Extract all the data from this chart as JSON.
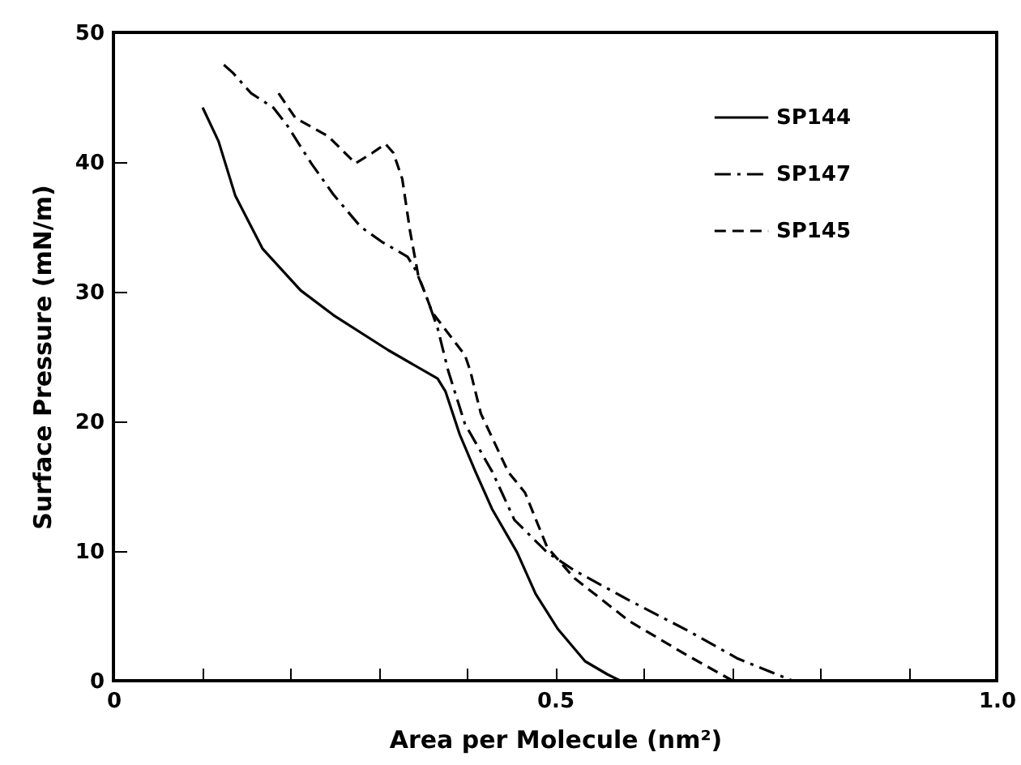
{
  "chart_data": {
    "type": "line",
    "xlabel": "Area per Molecule  (nm²)",
    "ylabel": "Surface Pressure  (mN/m)",
    "xlim": [
      0,
      1.0
    ],
    "ylim": [
      0,
      50
    ],
    "xticks": [
      0,
      {
        "value": 0.1,
        "label": null
      },
      {
        "value": 0.2,
        "label": null
      },
      {
        "value": 0.3,
        "label": null
      },
      {
        "value": 0.4,
        "label": null
      },
      0.5,
      {
        "value": 0.6,
        "label": null
      },
      {
        "value": 0.7,
        "label": null
      },
      {
        "value": 0.8,
        "label": null
      },
      {
        "value": 0.9,
        "label": null
      },
      {
        "value": 1.0,
        "label": "1.0"
      }
    ],
    "yticks": [
      0,
      10,
      20,
      30,
      40,
      50
    ],
    "legend": "top right",
    "grid": false,
    "marker": "none",
    "series": [
      {
        "name": "SP144",
        "color": "#000000",
        "line_style": "solid",
        "x": [
          0.101,
          0.119,
          0.138,
          0.169,
          0.212,
          0.249,
          0.311,
          0.367,
          0.376,
          0.392,
          0.41,
          0.429,
          0.457,
          0.478,
          0.503,
          0.534,
          0.559,
          0.574
        ],
        "values": [
          44.2,
          41.6,
          37.4,
          33.3,
          30.1,
          28.2,
          25.5,
          23.3,
          22.3,
          19.0,
          16.1,
          13.2,
          9.9,
          6.7,
          4.0,
          1.5,
          0.5,
          0
        ]
      },
      {
        "name": "SP147",
        "color": "#000000",
        "line_style": "dashdot",
        "x": [
          0.125,
          0.135,
          0.156,
          0.181,
          0.197,
          0.224,
          0.249,
          0.28,
          0.305,
          0.333,
          0.342,
          0.354,
          0.367,
          0.379,
          0.398,
          0.429,
          0.454,
          0.491,
          0.522,
          0.584,
          0.652,
          0.707,
          0.769
        ],
        "values": [
          47.5,
          46.9,
          45.3,
          44.2,
          42.8,
          39.9,
          37.5,
          35.0,
          33.8,
          32.7,
          31.7,
          29.7,
          27.2,
          23.9,
          19.8,
          16.1,
          12.4,
          9.9,
          8.5,
          6.2,
          3.8,
          1.7,
          0
        ]
      },
      {
        "name": "SP145",
        "color": "#000000",
        "line_style": "dashed",
        "x": [
          0.187,
          0.206,
          0.243,
          0.274,
          0.293,
          0.308,
          0.317,
          0.327,
          0.336,
          0.345,
          0.361,
          0.379,
          0.398,
          0.404,
          0.416,
          0.447,
          0.466,
          0.491,
          0.522,
          0.584,
          0.646,
          0.701
        ],
        "values": [
          45.3,
          43.4,
          42.0,
          39.9,
          40.7,
          41.4,
          40.7,
          38.7,
          34.6,
          31.3,
          28.4,
          26.8,
          25.1,
          23.9,
          20.6,
          16.1,
          14.5,
          10.3,
          7.9,
          4.6,
          2.1,
          0
        ]
      }
    ]
  }
}
